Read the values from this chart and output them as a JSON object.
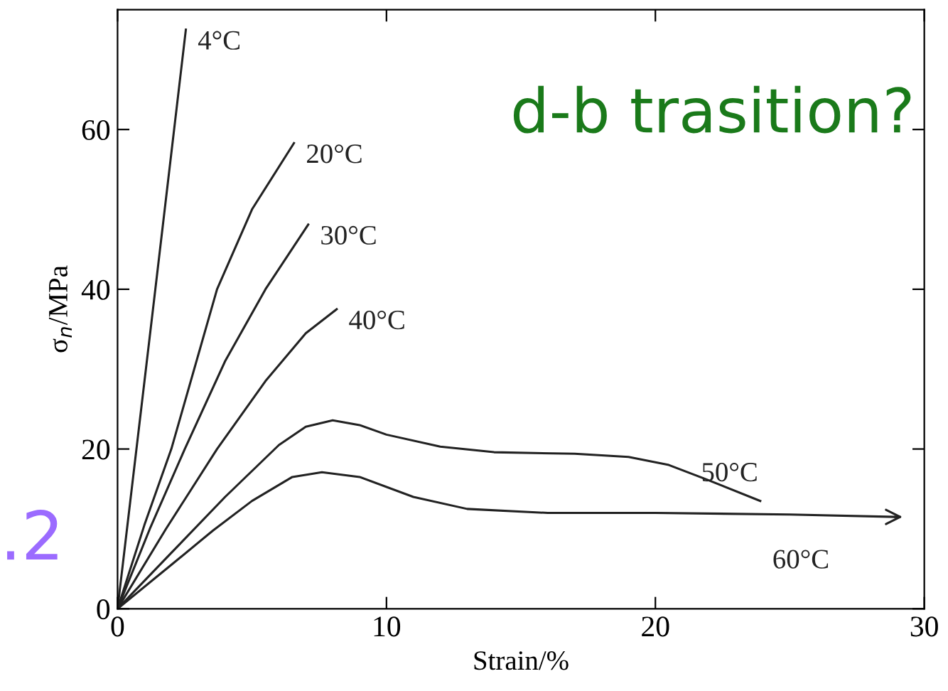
{
  "chart_data": {
    "type": "line",
    "xlabel": "Strain/%",
    "ylabel": "σ$_{n}$/MPa",
    "xlim": [
      0,
      30
    ],
    "ylim": [
      0,
      75
    ],
    "xticks": [
      0,
      10,
      20,
      30
    ],
    "yticks": [
      0,
      20,
      40,
      60
    ],
    "grid": false,
    "legend": false,
    "marker": "none",
    "line_style": "solid",
    "series": [
      {
        "name": "4°C",
        "color": "#222222",
        "x": [
          0,
          1.3,
          2.54
        ],
        "values": [
          0,
          37,
          72.5
        ]
      },
      {
        "name": "20°C",
        "color": "#222222",
        "x": [
          0,
          1,
          2,
          3.7,
          5,
          6.56
        ],
        "values": [
          0,
          10.5,
          20,
          40,
          50,
          58.3
        ]
      },
      {
        "name": "30°C",
        "color": "#222222",
        "x": [
          0,
          1.2,
          2.5,
          4,
          5.5,
          7.09
        ],
        "values": [
          0,
          10,
          20,
          31,
          40,
          48.1
        ]
      },
      {
        "name": "40°C",
        "color": "#222222",
        "x": [
          0,
          1.8,
          3.7,
          5.5,
          7,
          8.15
        ],
        "values": [
          0,
          10,
          20,
          28.5,
          34.5,
          37.5
        ]
      },
      {
        "name": "50°C",
        "color": "#222222",
        "x": [
          0,
          2,
          4,
          6,
          7,
          8,
          9,
          10,
          12,
          14,
          17,
          19,
          20.5,
          21.9,
          23.9
        ],
        "values": [
          0,
          7,
          14,
          20.5,
          22.8,
          23.6,
          23,
          21.8,
          20.3,
          19.6,
          19.4,
          19,
          18,
          16.2,
          13.5
        ]
      },
      {
        "name": "60°C",
        "color": "#222222",
        "x": [
          0,
          2,
          3.55,
          5,
          6.5,
          7.6,
          9,
          11,
          13,
          16,
          20,
          25,
          28.9
        ],
        "values": [
          0,
          5.5,
          9.8,
          13.5,
          16.5,
          17.1,
          16.5,
          14,
          12.5,
          12,
          12,
          11.8,
          11.5
        ]
      }
    ],
    "annotations": [
      "d-b trasition?",
      ".2"
    ]
  }
}
